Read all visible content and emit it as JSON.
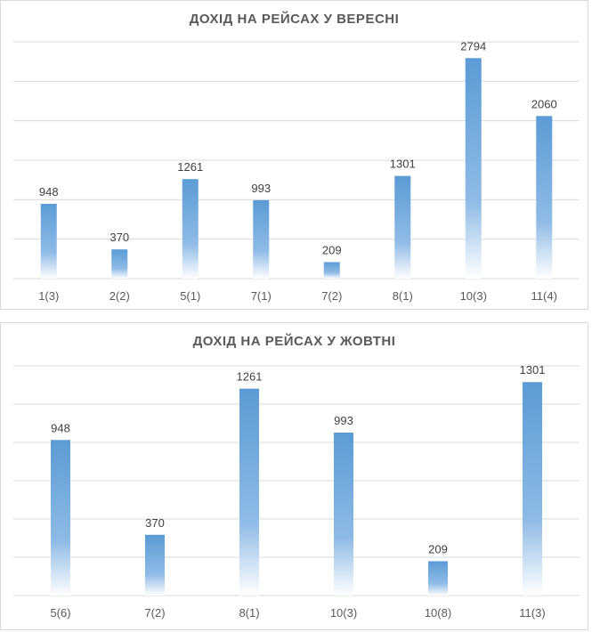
{
  "chart_data": [
    {
      "type": "bar",
      "title": "ДОХІД НА РЕЙСАХ У ВЕРЕСНІ",
      "categories": [
        "1(3)",
        "2(2)",
        "5(1)",
        "7(1)",
        "7(2)",
        "8(1)",
        "10(3)",
        "11(4)"
      ],
      "values": [
        948,
        370,
        1261,
        993,
        209,
        1301,
        2794,
        2060
      ],
      "xlabel": "",
      "ylabel": "",
      "ylim": [
        0,
        3000
      ],
      "grid": true,
      "bar_color": "#5b9bd5",
      "legend": "none"
    },
    {
      "type": "bar",
      "title": "ДОХІД НА РЕЙСАХ У ЖОВТНІ",
      "categories": [
        "5(6)",
        "7(2)",
        "8(1)",
        "10(3)",
        "10(8)",
        "11(3)"
      ],
      "values": [
        948,
        370,
        1261,
        993,
        209,
        1301
      ],
      "xlabel": "",
      "ylabel": "",
      "ylim": [
        0,
        1400
      ],
      "grid": true,
      "bar_color": "#5b9bd5",
      "legend": "none"
    }
  ]
}
